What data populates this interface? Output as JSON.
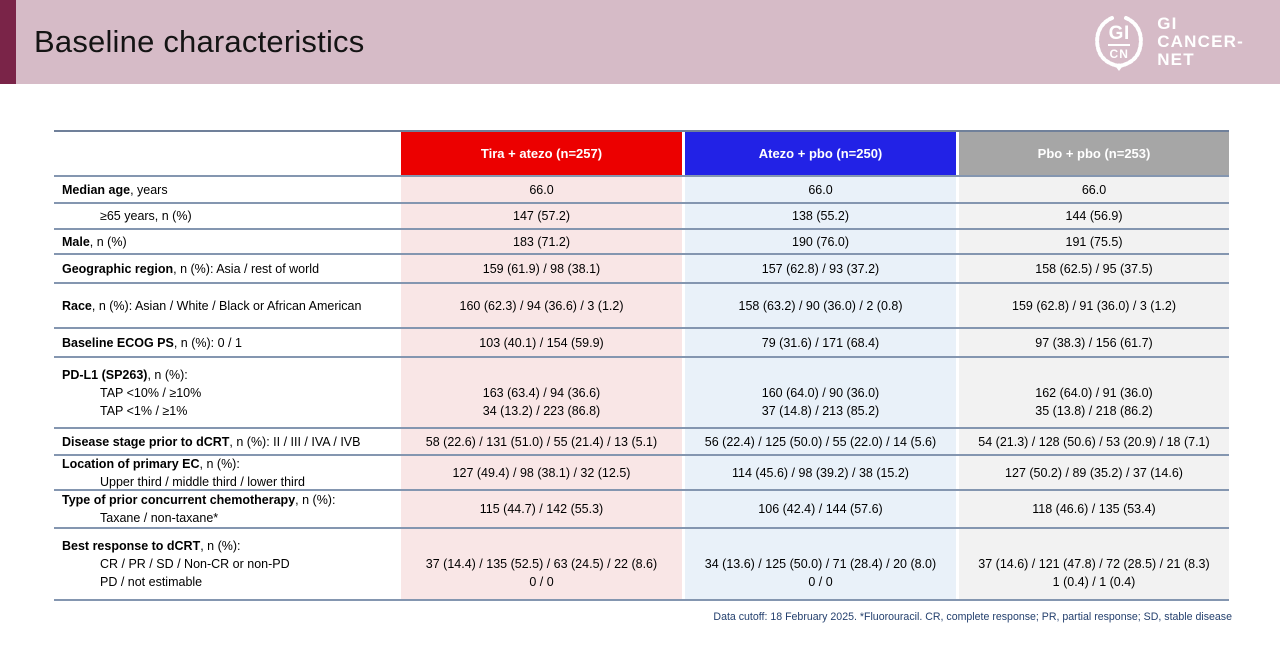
{
  "slide": {
    "title": "Baseline characteristics",
    "logo": {
      "monogram_top": "GI",
      "monogram_bottom": "CN",
      "wordmark_lines": [
        "GI",
        "CANCER-",
        "NET"
      ]
    },
    "footnote": "Data cutoff: 18 February 2025. *Fluorouracil. CR, complete response; PR, partial response; SD, stable disease"
  },
  "colors": {
    "header_bar": "#d6bbc7",
    "accent_bar": "#7a2448",
    "arm1_header": "#ec0000",
    "arm2_header": "#2222e6",
    "arm3_header": "#a6a6a6",
    "arm1_tint": "#f9e6e6",
    "arm2_tint": "#e9f1f9",
    "arm3_tint": "#f2f2f2",
    "row_border": "#8496b0",
    "footnote_text": "#24406e"
  },
  "table": {
    "columns": [
      {
        "label": "Tira + atezo (n=257)"
      },
      {
        "label": "Atezo + pbo (n=250)"
      },
      {
        "label": "Pbo + pbo (n=253)"
      }
    ],
    "rows": [
      {
        "bold": "Median age",
        "rest": ", years",
        "indent": false,
        "sub_lines": [],
        "values": [
          [
            "66.0"
          ],
          [
            "66.0"
          ],
          [
            "66.0"
          ]
        ]
      },
      {
        "bold": "",
        "rest": "≥65 years, n (%)",
        "indent": true,
        "sub_lines": [],
        "values": [
          [
            "147 (57.2)"
          ],
          [
            "138 (55.2)"
          ],
          [
            "144 (56.9)"
          ]
        ]
      },
      {
        "bold": "Male",
        "rest": ", n (%)",
        "indent": false,
        "sub_lines": [],
        "values": [
          [
            "183 (71.2)"
          ],
          [
            "190 (76.0)"
          ],
          [
            "191 (75.5)"
          ]
        ]
      },
      {
        "bold": "Geographic region",
        "rest": ", n (%): Asia / rest of world",
        "indent": false,
        "sub_lines": [],
        "values": [
          [
            "159 (61.9) / 98 (38.1)"
          ],
          [
            "157 (62.8) / 93 (37.2)"
          ],
          [
            "158 (62.5) / 95 (37.5)"
          ]
        ]
      },
      {
        "bold": "Race",
        "rest": ", n (%): Asian / White / Black or African American",
        "indent": false,
        "sub_lines": [],
        "values": [
          [
            "160 (62.3) / 94 (36.6) / 3 (1.2)"
          ],
          [
            "158 (63.2) / 90 (36.0) / 2 (0.8)"
          ],
          [
            "159 (62.8) / 91 (36.0) / 3 (1.2)"
          ]
        ]
      },
      {
        "bold": "Baseline ECOG PS",
        "rest": ", n (%): 0 / 1",
        "indent": false,
        "sub_lines": [],
        "values": [
          [
            "103 (40.1) / 154 (59.9)"
          ],
          [
            "79 (31.6) / 171 (68.4)"
          ],
          [
            "97 (38.3) / 156 (61.7)"
          ]
        ]
      },
      {
        "bold": "PD-L1 (SP263)",
        "rest": ", n (%):",
        "indent": false,
        "sub_lines": [
          "TAP <10% / ≥10%",
          "TAP <1% / ≥1%"
        ],
        "values": [
          [
            "163 (63.4) / 94 (36.6)",
            "34 (13.2) / 223 (86.8)"
          ],
          [
            "160 (64.0) / 90 (36.0)",
            "37 (14.8) / 213 (85.2)"
          ],
          [
            "162 (64.0) / 91 (36.0)",
            "35 (13.8) / 218 (86.2)"
          ]
        ]
      },
      {
        "bold": "Disease stage prior to dCRT",
        "rest": ", n (%): II / III / IVA / IVB",
        "indent": false,
        "sub_lines": [],
        "values": [
          [
            "58 (22.6) / 131 (51.0) / 55 (21.4) / 13 (5.1)"
          ],
          [
            "56 (22.4) / 125 (50.0) / 55 (22.0) / 14 (5.6)"
          ],
          [
            "54 (21.3) / 128 (50.6) / 53 (20.9) / 18 (7.1)"
          ]
        ]
      },
      {
        "bold": "Location of primary EC",
        "rest": ", n (%):",
        "indent": false,
        "sub_lines": [
          "Upper third / middle third / lower third"
        ],
        "values": [
          [
            "127 (49.4) / 98 (38.1) / 32 (12.5)"
          ],
          [
            "114 (45.6) / 98 (39.2) / 38 (15.2)"
          ],
          [
            "127 (50.2) / 89 (35.2) / 37 (14.6)"
          ]
        ]
      },
      {
        "bold": "Type of prior concurrent chemotherapy",
        "rest": ", n (%):",
        "indent": false,
        "sub_lines": [
          "Taxane / non-taxane*"
        ],
        "values": [
          [
            "115 (44.7) / 142 (55.3)"
          ],
          [
            "106 (42.4) / 144 (57.6)"
          ],
          [
            "118 (46.6) / 135 (53.4)"
          ]
        ]
      },
      {
        "bold": "Best response to dCRT",
        "rest": ", n (%):",
        "indent": false,
        "sub_lines": [
          "CR / PR / SD / Non-CR or non-PD",
          "PD / not estimable"
        ],
        "values": [
          [
            "37 (14.4) / 135 (52.5) / 63 (24.5) / 22 (8.6)",
            "0 / 0"
          ],
          [
            "34 (13.6) / 125 (50.0) / 71 (28.4) / 20 (8.0)",
            "0 / 0"
          ],
          [
            "37 (14.6) / 121 (47.8) / 72 (28.5) / 21 (8.3)",
            "1 (0.4) / 1 (0.4)"
          ]
        ]
      }
    ]
  }
}
